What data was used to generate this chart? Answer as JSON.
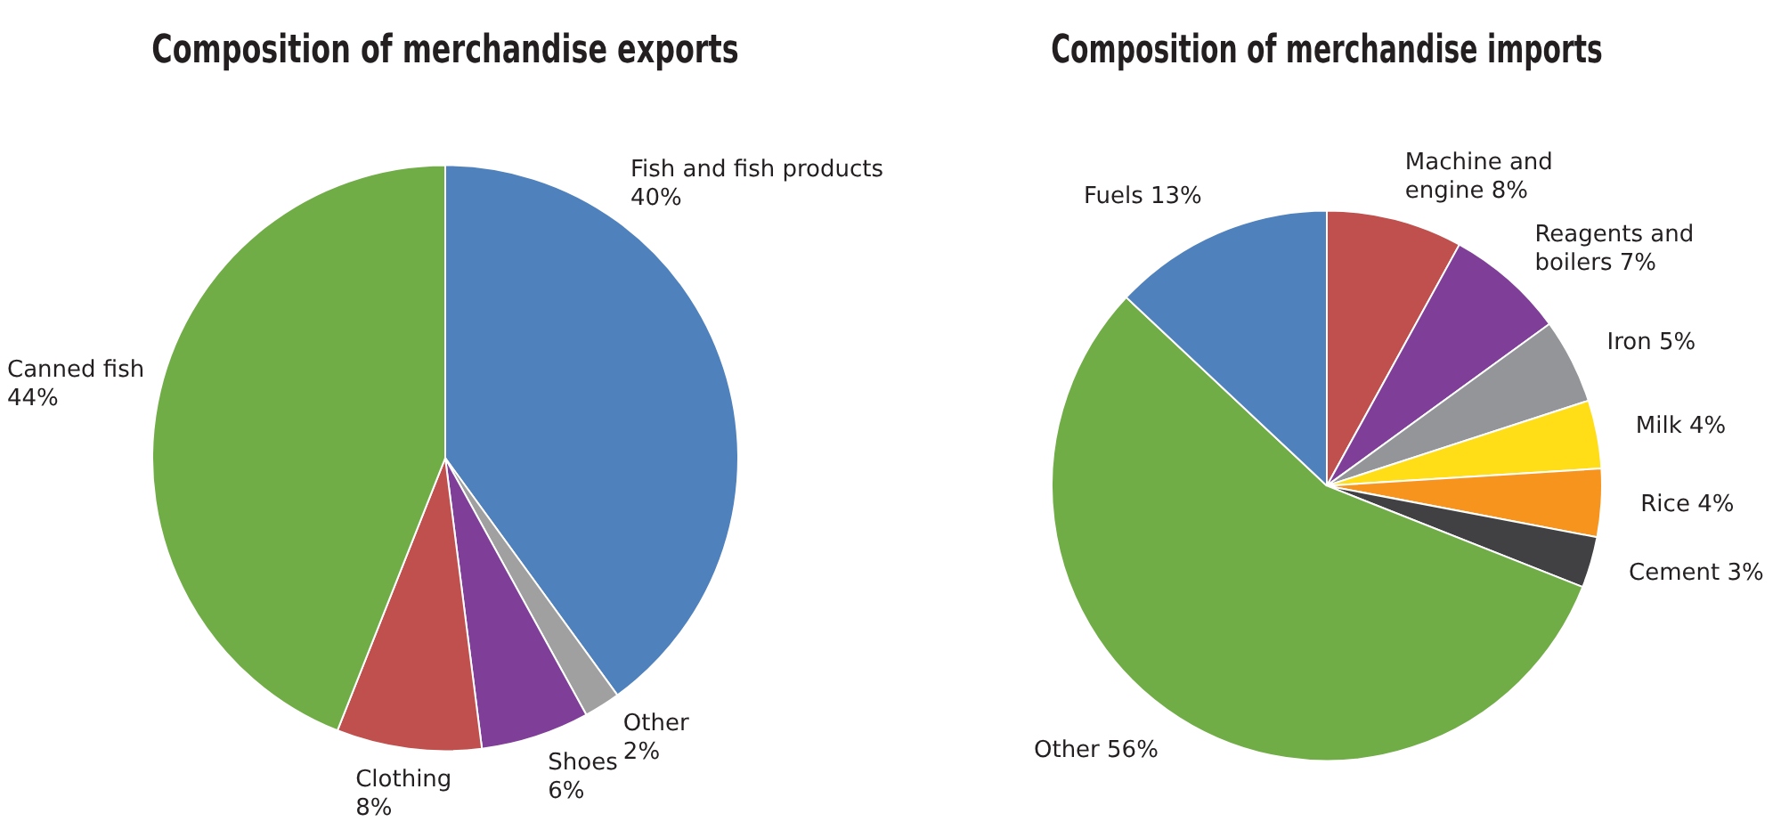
{
  "chart_data": [
    {
      "type": "pie",
      "title": "Composition of merchandise exports",
      "categories": [
        "Fish and fish products",
        "Other",
        "Shoes",
        "Clothing",
        "Canned fish"
      ],
      "values": [
        40,
        2,
        6,
        8,
        44
      ],
      "value_labels": [
        "40%",
        "2%",
        "6%",
        "8%",
        "44%"
      ],
      "colors": [
        "#4f81bd",
        "#a0a0a0",
        "#7f3f98",
        "#c0504d",
        "#70ad47"
      ],
      "legend": false
    },
    {
      "type": "pie",
      "title": "Composition of merchandise imports",
      "categories": [
        "Machine and engine",
        "Reagents and boilers",
        "Iron",
        "Milk",
        "Rice",
        "Cement",
        "Other",
        "Fuels"
      ],
      "values": [
        8,
        7,
        5,
        4,
        4,
        3,
        56,
        13
      ],
      "value_labels": [
        "8%",
        "7%",
        "5%",
        "4%",
        "4%",
        "3%",
        "56%",
        "13%"
      ],
      "colors": [
        "#c0504d",
        "#7f3f98",
        "#939598",
        "#ffde17",
        "#f7941d",
        "#414042",
        "#70ad47",
        "#4f81bd"
      ],
      "legend": false
    }
  ]
}
